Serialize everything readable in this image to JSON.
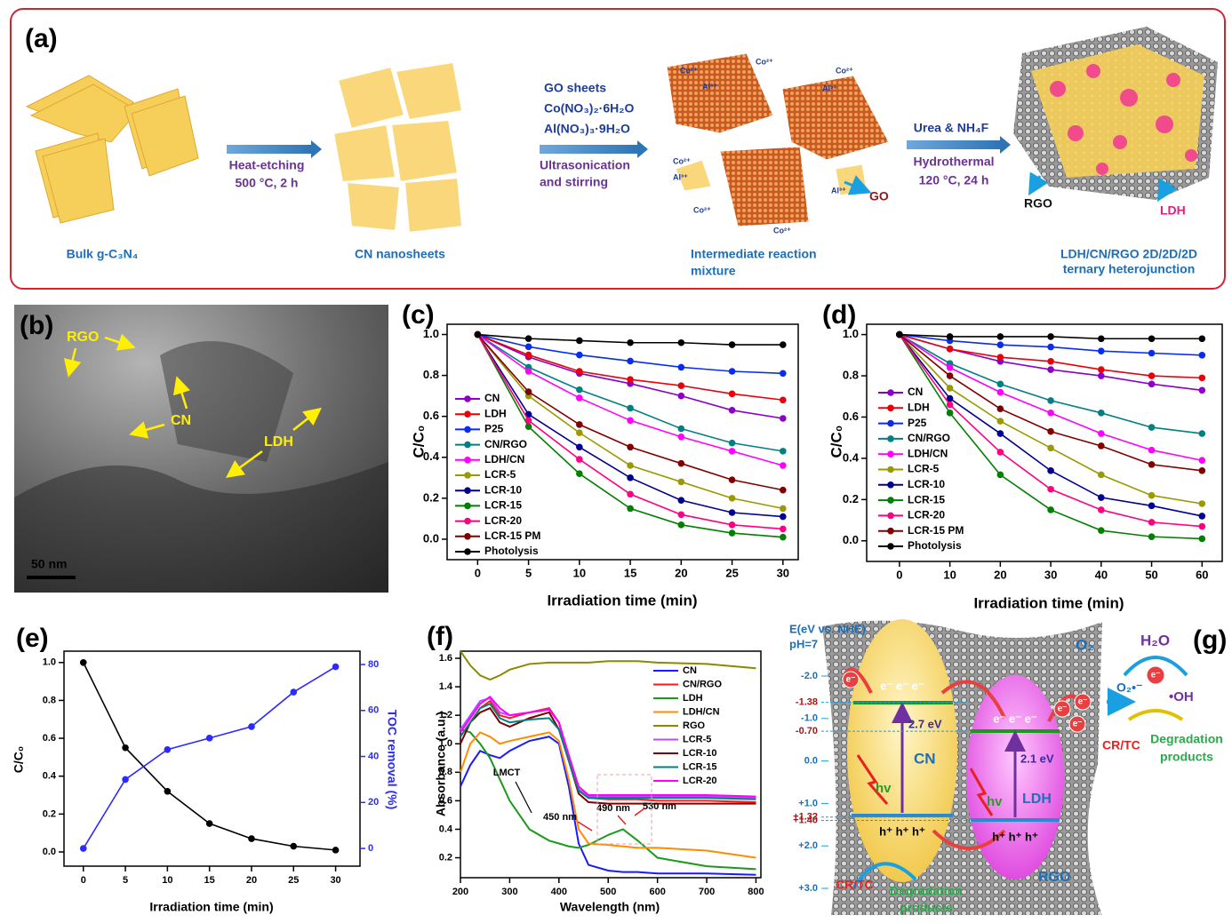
{
  "chart_data": [
    {
      "type": "line",
      "panel": "(c)",
      "x_label": "Irradiation time (min)",
      "y_label": "C/C₀",
      "markers": true,
      "x": [
        0,
        5,
        10,
        15,
        20,
        25,
        30
      ],
      "xlim": [
        -3,
        31.5
      ],
      "xticks": [
        0,
        5,
        10,
        15,
        20,
        25,
        30
      ],
      "ylim": [
        -0.1,
        1.05
      ],
      "yticks": [
        {
          "value": 0,
          "label": "0.0"
        },
        0.2,
        0.4,
        0.6,
        0.8,
        {
          "value": 1,
          "label": "1.0"
        }
      ],
      "series": [
        {
          "name": "CN",
          "color": "#8a00c8",
          "values": [
            1.0,
            0.89,
            0.81,
            0.76,
            0.7,
            0.63,
            0.59
          ]
        },
        {
          "name": "LDH",
          "color": "#e8000b",
          "values": [
            1.0,
            0.9,
            0.82,
            0.78,
            0.75,
            0.71,
            0.68
          ]
        },
        {
          "name": "P25",
          "color": "#0a2bf0",
          "values": [
            1.0,
            0.94,
            0.9,
            0.87,
            0.84,
            0.82,
            0.81
          ]
        },
        {
          "name": "CN/RGO",
          "color": "#008080",
          "values": [
            1.0,
            0.84,
            0.73,
            0.64,
            0.54,
            0.47,
            0.43
          ]
        },
        {
          "name": "LDH/CN",
          "color": "#ff00ff",
          "values": [
            1.0,
            0.82,
            0.69,
            0.58,
            0.5,
            0.43,
            0.36
          ]
        },
        {
          "name": "LCR-5",
          "color": "#9a9a00",
          "values": [
            1.0,
            0.7,
            0.52,
            0.36,
            0.28,
            0.2,
            0.15
          ]
        },
        {
          "name": "LCR-10",
          "color": "#000090",
          "values": [
            1.0,
            0.61,
            0.45,
            0.3,
            0.19,
            0.13,
            0.11
          ]
        },
        {
          "name": "LCR-15",
          "color": "#008000",
          "values": [
            1.0,
            0.55,
            0.32,
            0.15,
            0.07,
            0.03,
            0.01
          ]
        },
        {
          "name": "LCR-20",
          "color": "#ff0080",
          "values": [
            1.0,
            0.58,
            0.39,
            0.22,
            0.12,
            0.07,
            0.05
          ]
        },
        {
          "name": "LCR-15 PM",
          "color": "#800000",
          "values": [
            1.0,
            0.72,
            0.56,
            0.45,
            0.37,
            0.29,
            0.24
          ]
        },
        {
          "name": "Photolysis",
          "color": "#000000",
          "values": [
            1.0,
            0.98,
            0.97,
            0.96,
            0.96,
            0.95,
            0.95
          ]
        }
      ]
    },
    {
      "type": "line",
      "panel": "(d)",
      "x_label": "Irradiation time (min)",
      "y_label": "C/C₀",
      "markers": true,
      "x": [
        0,
        10,
        20,
        30,
        40,
        50,
        60
      ],
      "xlim": [
        -6.5,
        64
      ],
      "xticks": [
        0,
        10,
        20,
        30,
        40,
        50,
        60
      ],
      "ylim": [
        -0.1,
        1.05
      ],
      "yticks": [
        {
          "value": 0,
          "label": "0.0"
        },
        0.2,
        0.4,
        0.6,
        0.8,
        {
          "value": 1,
          "label": "1.0"
        }
      ],
      "series": [
        {
          "name": "CN",
          "color": "#8a00c8",
          "values": [
            1.0,
            0.93,
            0.87,
            0.83,
            0.8,
            0.76,
            0.73
          ]
        },
        {
          "name": "LDH",
          "color": "#e8000b",
          "values": [
            1.0,
            0.93,
            0.89,
            0.87,
            0.83,
            0.8,
            0.79
          ]
        },
        {
          "name": "P25",
          "color": "#0a2bf0",
          "values": [
            1.0,
            0.97,
            0.95,
            0.94,
            0.92,
            0.91,
            0.9
          ]
        },
        {
          "name": "CN/RGO",
          "color": "#008080",
          "values": [
            1.0,
            0.86,
            0.76,
            0.68,
            0.62,
            0.55,
            0.52
          ]
        },
        {
          "name": "LDH/CN",
          "color": "#ff00ff",
          "values": [
            1.0,
            0.84,
            0.72,
            0.62,
            0.52,
            0.44,
            0.39
          ]
        },
        {
          "name": "LCR-5",
          "color": "#9a9a00",
          "values": [
            1.0,
            0.74,
            0.58,
            0.45,
            0.32,
            0.22,
            0.18
          ]
        },
        {
          "name": "LCR-10",
          "color": "#000090",
          "values": [
            1.0,
            0.69,
            0.52,
            0.34,
            0.21,
            0.17,
            0.12
          ]
        },
        {
          "name": "LCR-15",
          "color": "#008000",
          "values": [
            1.0,
            0.62,
            0.32,
            0.15,
            0.05,
            0.02,
            0.01
          ]
        },
        {
          "name": "LCR-20",
          "color": "#ff0080",
          "values": [
            1.0,
            0.66,
            0.43,
            0.25,
            0.15,
            0.09,
            0.07
          ]
        },
        {
          "name": "LCR-15 PM",
          "color": "#800000",
          "values": [
            1.0,
            0.8,
            0.64,
            0.53,
            0.46,
            0.37,
            0.34
          ]
        },
        {
          "name": "Photolysis",
          "color": "#000000",
          "values": [
            1.0,
            0.99,
            0.99,
            0.99,
            0.98,
            0.98,
            0.98
          ]
        }
      ]
    },
    {
      "type": "line",
      "panel": "(e)",
      "x_label": "Irradiation time (min)",
      "y_label": "C/C₀",
      "y2_label": "TOC removal (%)",
      "markers": true,
      "x": [
        0,
        5,
        10,
        15,
        20,
        25,
        30
      ],
      "xlim": [
        -2.3,
        32.9
      ],
      "xticks": [
        0,
        5,
        10,
        15,
        20,
        25,
        30
      ],
      "ylim": [
        -0.075,
        1.06
      ],
      "yticks": [
        {
          "value": 0,
          "label": "0.0"
        },
        0.2,
        0.4,
        0.6,
        0.8,
        {
          "value": 1,
          "label": "1.0"
        }
      ],
      "y2lim": [
        -7.7,
        85.8
      ],
      "y2ticks": [
        0,
        20,
        40,
        60,
        80
      ],
      "series": [
        {
          "color": "#000000",
          "values": [
            1.0,
            0.55,
            0.32,
            0.15,
            0.07,
            0.03,
            0.01
          ]
        },
        {
          "color": "#2b2bff",
          "axis": "y2",
          "values": [
            0,
            30,
            43,
            48,
            53,
            68,
            79
          ]
        }
      ]
    },
    {
      "type": "line",
      "panel": "(f)",
      "x_label": "Wavelength (nm)",
      "y_label": "Absorbance (a.u.)",
      "markers": false,
      "x": [
        200,
        220,
        240,
        260,
        280,
        300,
        340,
        380,
        400,
        420,
        440,
        460,
        500,
        530,
        560,
        600,
        700,
        800
      ],
      "xlim": [
        200,
        810
      ],
      "xticks": [
        200,
        300,
        400,
        500,
        600,
        700,
        800
      ],
      "ylim": [
        0.06,
        1.65
      ],
      "yticks": [
        0.2,
        0.4,
        0.6,
        0.8,
        {
          "value": 1,
          "label": "1.0"
        },
        1.2,
        1.4,
        1.6
      ],
      "annotations": [
        "LMCT",
        "450 nm",
        "490 nm",
        "530 nm"
      ],
      "series": [
        {
          "name": "CN",
          "color": "#1a1aff",
          "values": [
            0.7,
            0.85,
            0.95,
            0.92,
            0.9,
            0.95,
            1.02,
            1.05,
            1.0,
            0.7,
            0.3,
            0.15,
            0.11,
            0.1,
            0.1,
            0.09,
            0.09,
            0.08
          ]
        },
        {
          "name": "CN/RGO",
          "color": "#ff1a1a",
          "values": [
            1.05,
            1.15,
            1.25,
            1.3,
            1.2,
            1.18,
            1.22,
            1.25,
            1.15,
            0.9,
            0.68,
            0.62,
            0.61,
            0.61,
            0.61,
            0.6,
            0.6,
            0.59
          ]
        },
        {
          "name": "LDH",
          "color": "#1a9a1a",
          "values": [
            1.1,
            1.08,
            1.0,
            0.9,
            0.75,
            0.6,
            0.4,
            0.32,
            0.3,
            0.28,
            0.27,
            0.29,
            0.36,
            0.4,
            0.32,
            0.2,
            0.14,
            0.12
          ]
        },
        {
          "name": "LDH/CN",
          "color": "#ff8c00",
          "values": [
            0.8,
            1.0,
            1.08,
            1.05,
            1.0,
            1.02,
            1.05,
            1.08,
            1.02,
            0.75,
            0.4,
            0.3,
            0.29,
            0.28,
            0.27,
            0.27,
            0.25,
            0.2
          ]
        },
        {
          "name": "RGO",
          "color": "#8a8a00",
          "values": [
            1.65,
            1.55,
            1.48,
            1.45,
            1.48,
            1.52,
            1.56,
            1.57,
            1.57,
            1.57,
            1.57,
            1.57,
            1.58,
            1.58,
            1.58,
            1.57,
            1.56,
            1.53
          ]
        },
        {
          "name": "LCR-5",
          "color": "#b84dff",
          "values": [
            1.1,
            1.2,
            1.3,
            1.32,
            1.22,
            1.2,
            1.22,
            1.24,
            1.15,
            0.9,
            0.68,
            0.63,
            0.63,
            0.63,
            0.63,
            0.63,
            0.63,
            0.62
          ]
        },
        {
          "name": "LCR-10",
          "color": "#800000",
          "values": [
            1.0,
            1.15,
            1.22,
            1.25,
            1.15,
            1.12,
            1.18,
            1.22,
            1.1,
            0.88,
            0.65,
            0.59,
            0.58,
            0.58,
            0.58,
            0.58,
            0.58,
            0.58
          ]
        },
        {
          "name": "LCR-15",
          "color": "#008080",
          "values": [
            1.05,
            1.15,
            1.25,
            1.28,
            1.18,
            1.15,
            1.17,
            1.18,
            1.1,
            0.88,
            0.67,
            0.62,
            0.62,
            0.62,
            0.62,
            0.62,
            0.62,
            0.61
          ]
        },
        {
          "name": "LCR-20",
          "color": "#ff00ff",
          "values": [
            1.08,
            1.18,
            1.28,
            1.33,
            1.25,
            1.2,
            1.22,
            1.24,
            1.15,
            0.92,
            0.7,
            0.64,
            0.64,
            0.64,
            0.64,
            0.64,
            0.64,
            0.63
          ]
        }
      ]
    }
  ],
  "panel_a": {
    "label": "(a)",
    "bulk": "Bulk g-C₃N₄",
    "step1": [
      "Heat-etching",
      "500 °C, 2 h"
    ],
    "nanosheets": "CN nanosheets",
    "reagents": [
      "GO sheets",
      "Co(NO₃)₂·6H₂O",
      "Al(NO₃)₃·9H₂O"
    ],
    "step2": [
      "Ultrasonication",
      "and stirring"
    ],
    "intermediate": [
      "Intermediate reaction",
      "mixture"
    ],
    "ions": [
      "Co²⁺",
      "Al³⁺"
    ],
    "go": "GO",
    "step3_top": "Urea & NH₄F",
    "step3": [
      "Hydrothermal",
      "120 °C, 24 h"
    ],
    "rgo": "RGO",
    "ldh": "LDH",
    "product": [
      "LDH/CN/RGO 2D/2D/2D",
      "ternary heterojunction"
    ]
  },
  "panel_b": {
    "label": "(b)",
    "rgo": "RGO",
    "cn": "CN",
    "ldh": "LDH",
    "scale": "50 nm"
  },
  "panel_g": {
    "label": "(g)",
    "axis_title": "E(eV vs. NHE)",
    "ph": "pH=7",
    "levels": [
      {
        "value": -2.0,
        "label": "-2.0"
      },
      {
        "value": -1.38,
        "label": "-1.38"
      },
      {
        "value": -1.0,
        "label": "-1.0"
      },
      {
        "value": -0.7,
        "label": "-0.70"
      },
      {
        "value": 0,
        "label": "0.0"
      },
      {
        "value": 1.0,
        "label": "+1.0"
      },
      {
        "value": 1.32,
        "label": "+1.32"
      },
      {
        "value": 1.4,
        "label": "+1.40"
      },
      {
        "value": 2.0,
        "label": "+2.0"
      },
      {
        "value": 3.0,
        "label": "+3.0"
      }
    ],
    "cn": "CN",
    "cn_gap": "2.7 eV",
    "ldh": "LDH",
    "ldh_gap": "2.1 eV",
    "electrons": "e⁻ e⁻ e⁻",
    "holes": "h⁺ h⁺ h⁺",
    "light": "hv",
    "electron": "e⁻",
    "rgo": "RGO",
    "o2": "O₂",
    "h2o": "H₂O",
    "superoxide": "O₂•⁻",
    "hydroxyl": "•OH",
    "pollutant": "CR/TC",
    "products": [
      "Degradation",
      "products"
    ]
  }
}
